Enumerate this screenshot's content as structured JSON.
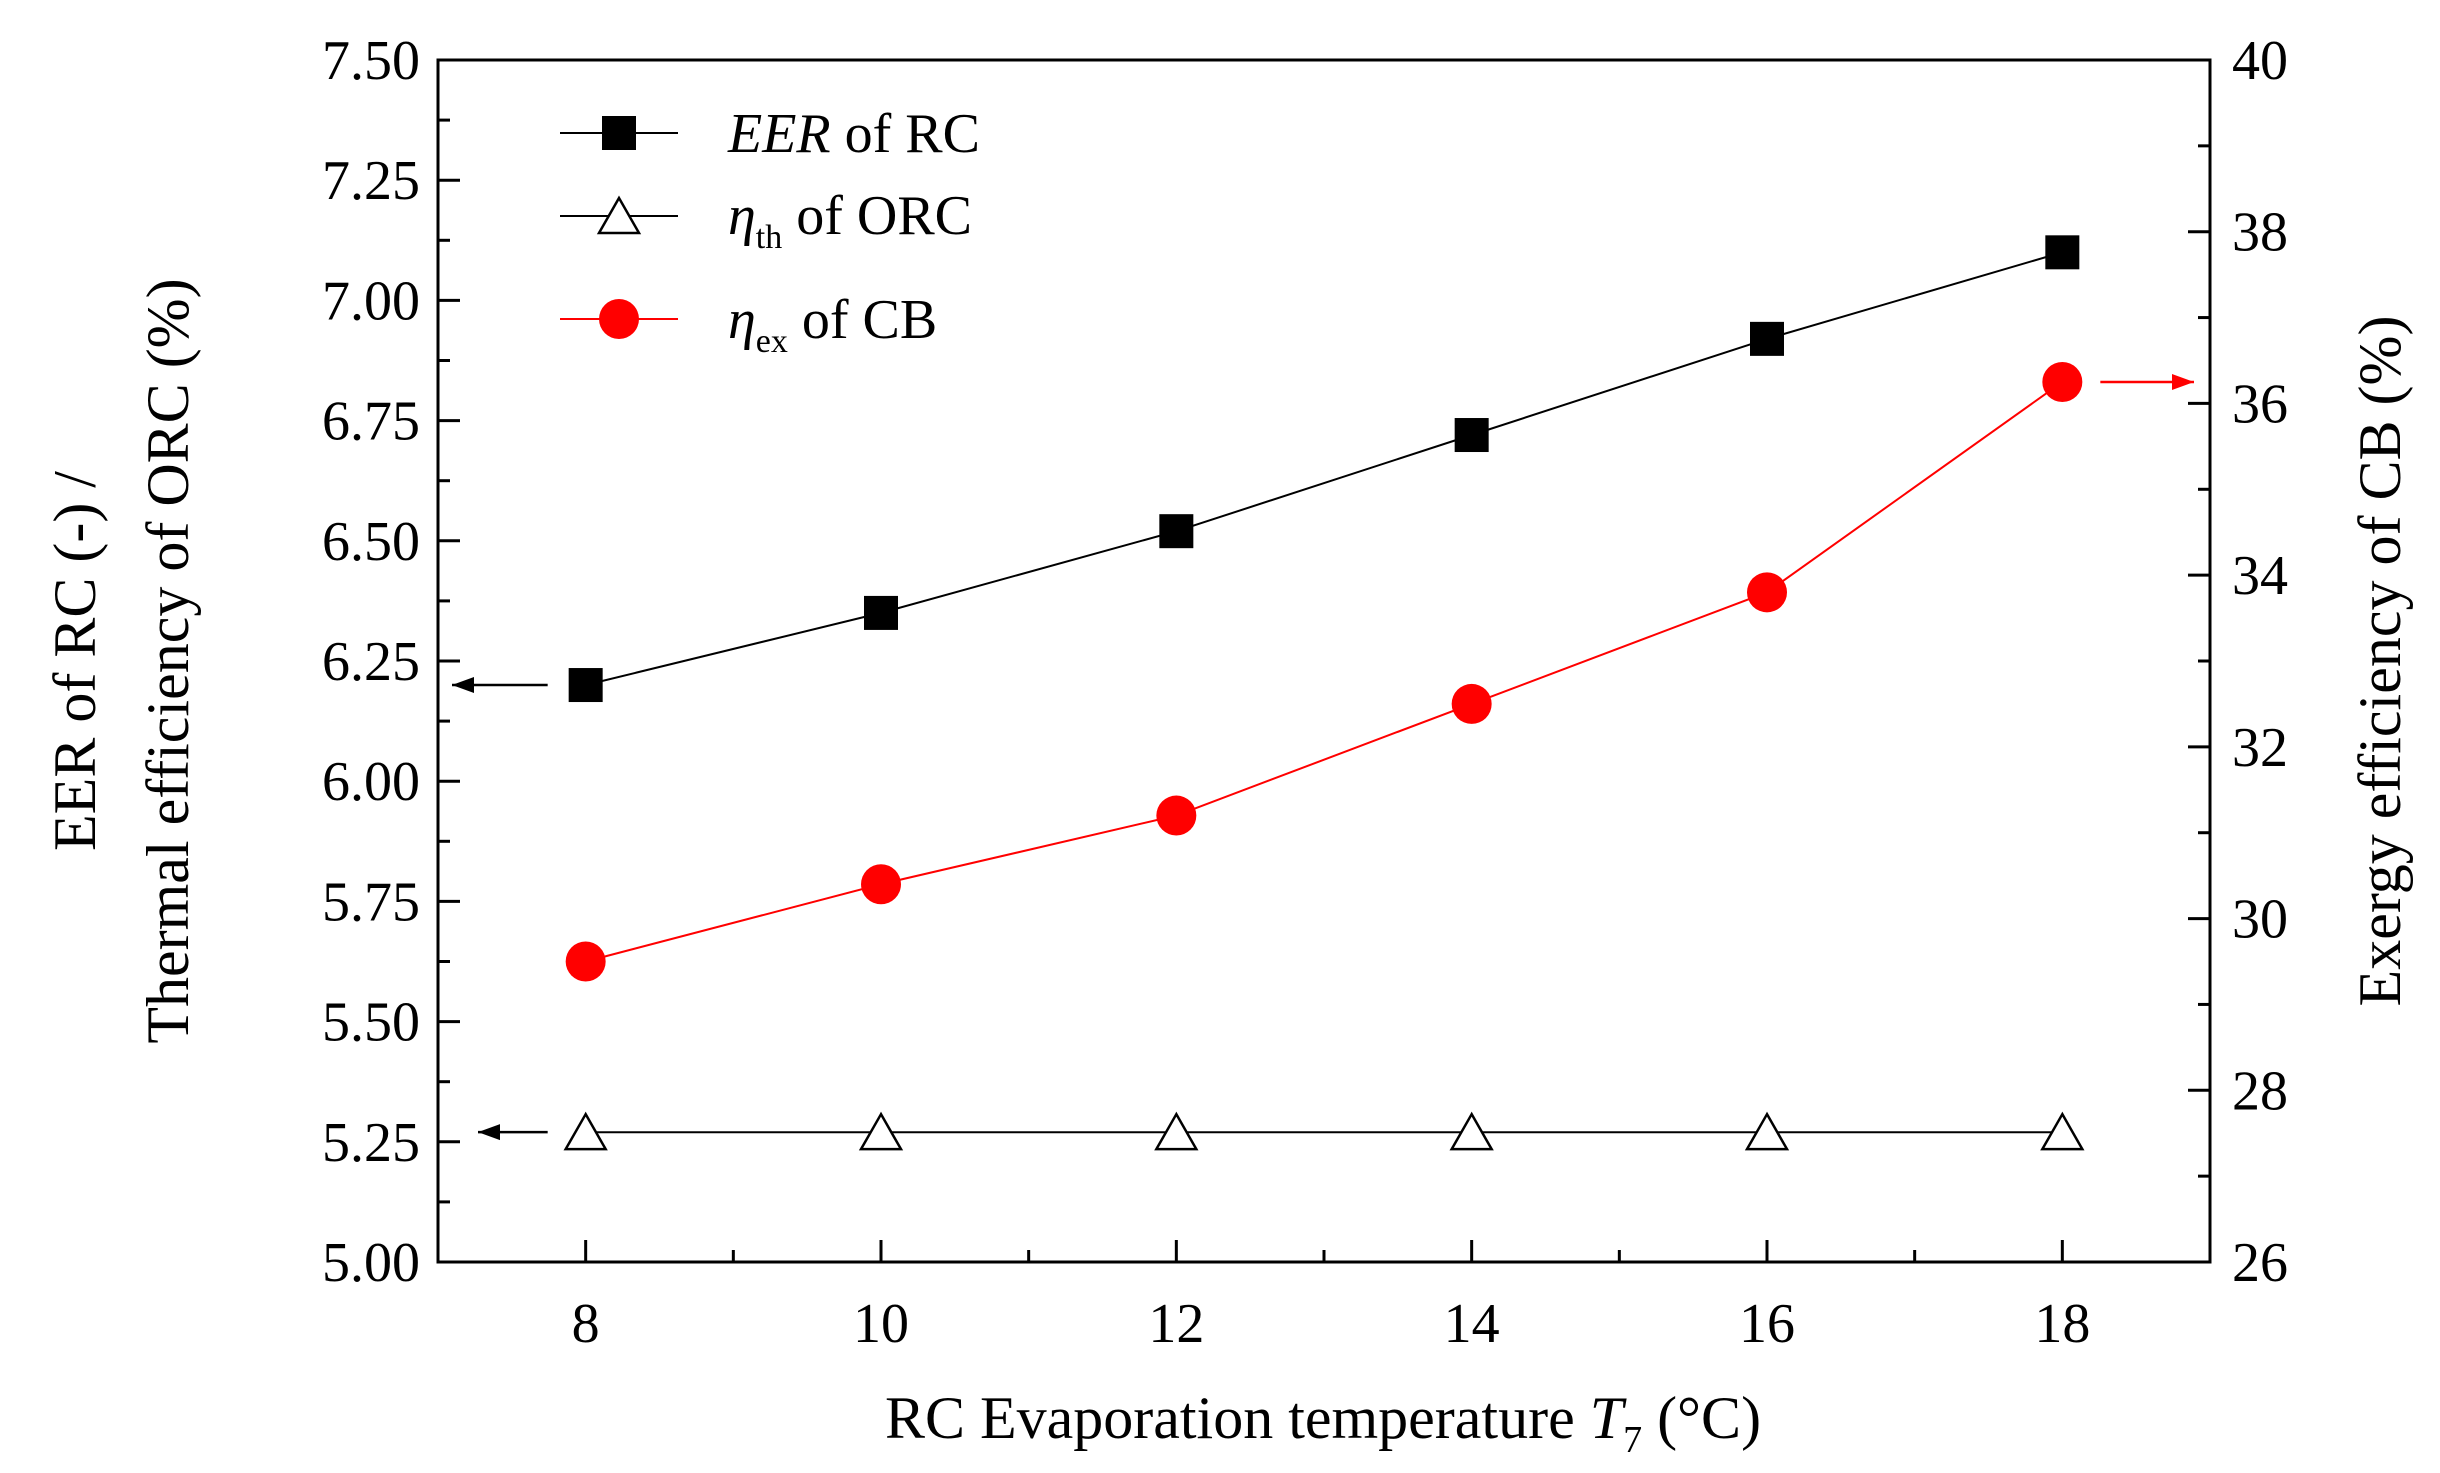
{
  "chart_data": {
    "type": "line",
    "x": [
      8,
      10,
      12,
      14,
      16,
      18
    ],
    "xlim": [
      7,
      19
    ],
    "x_ticks": [
      "8",
      "10",
      "12",
      "14",
      "16",
      "18"
    ],
    "xlabel": {
      "prefix": "RC Evaporation temperature ",
      "var": "T",
      "sub": "7",
      "suffix": " (°C)"
    },
    "ylim_left": [
      5.0,
      7.5
    ],
    "y_left_ticks": [
      "5.00",
      "5.25",
      "5.50",
      "5.75",
      "6.00",
      "6.25",
      "6.50",
      "6.75",
      "7.00",
      "7.25",
      "7.50"
    ],
    "ylabel_left_line1": "EER of RC (-) /",
    "ylabel_left_line2": "Thermal efficiency of ORC (%)",
    "ylim_right": [
      26,
      40
    ],
    "y_right_ticks": [
      "26",
      "28",
      "30",
      "32",
      "34",
      "36",
      "38",
      "40"
    ],
    "ylabel_right": "Exergy efficiency of CB (%)",
    "series": [
      {
        "name": "EER of RC",
        "legend_main": "EER",
        "legend_suffix": " of RC",
        "axis": "left",
        "marker": "square",
        "color": "#000000",
        "values": [
          6.2,
          6.35,
          6.52,
          6.72,
          6.92,
          7.1
        ]
      },
      {
        "name": "ηth of ORC",
        "legend_main": "η",
        "legend_sub": "th",
        "legend_suffix": " of ORC",
        "axis": "left",
        "marker": "triangle",
        "color": "#000000",
        "values": [
          5.27,
          5.27,
          5.27,
          5.27,
          5.27,
          5.27
        ]
      },
      {
        "name": "ηex of CB",
        "legend_main": "η",
        "legend_sub": "ex",
        "legend_suffix": " of CB",
        "axis": "right",
        "marker": "circle",
        "color": "#ff0000",
        "values": [
          29.5,
          30.4,
          31.2,
          32.5,
          33.8,
          36.25
        ]
      }
    ]
  }
}
